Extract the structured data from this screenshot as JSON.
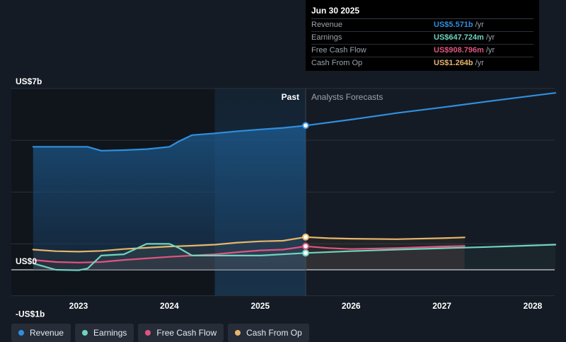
{
  "tooltip": {
    "date": "Jun 30 2025",
    "rows": [
      {
        "label": "Revenue",
        "value": "US$5.571b",
        "unit": "/yr",
        "color": "#2f8fe0"
      },
      {
        "label": "Earnings",
        "value": "US$647.724m",
        "unit": "/yr",
        "color": "#6fd4c0"
      },
      {
        "label": "Free Cash Flow",
        "value": "US$908.796m",
        "unit": "/yr",
        "color": "#e0557f"
      },
      {
        "label": "Cash From Op",
        "value": "US$1.264b",
        "unit": "/yr",
        "color": "#e8b56a"
      }
    ]
  },
  "legend": [
    {
      "label": "Revenue",
      "color": "#2f8fe0"
    },
    {
      "label": "Earnings",
      "color": "#6fd4c0"
    },
    {
      "label": "Free Cash Flow",
      "color": "#e0557f"
    },
    {
      "label": "Cash From Op",
      "color": "#e8b56a"
    }
  ],
  "chart_data": {
    "type": "line",
    "title": "",
    "xlabel": "",
    "ylabel": "",
    "ylim": [
      -1,
      7
    ],
    "xlim": [
      2022.5,
      2028.25
    ],
    "y_tick_labels": [
      {
        "value": 7,
        "label": "US$7b"
      },
      {
        "value": 0,
        "label": "US$0"
      },
      {
        "value": -1,
        "label": "-US$1b"
      }
    ],
    "x_ticks": [
      2023,
      2024,
      2025,
      2026,
      2027,
      2028
    ],
    "past_label": "Past",
    "forecast_label": "Analysts Forecasts",
    "divider_x": 2025.5,
    "forecast_band_start": 2024.5,
    "series": [
      {
        "name": "Revenue",
        "color": "#2f8fe0",
        "points": [
          [
            2022.5,
            4.75
          ],
          [
            2022.75,
            4.75
          ],
          [
            2023.0,
            4.75
          ],
          [
            2023.1,
            4.75
          ],
          [
            2023.25,
            4.6
          ],
          [
            2023.5,
            4.62
          ],
          [
            2023.75,
            4.66
          ],
          [
            2024.0,
            4.75
          ],
          [
            2024.1,
            4.95
          ],
          [
            2024.25,
            5.2
          ],
          [
            2024.5,
            5.27
          ],
          [
            2024.75,
            5.35
          ],
          [
            2025.0,
            5.42
          ],
          [
            2025.25,
            5.48
          ],
          [
            2025.5,
            5.571
          ],
          [
            2026.0,
            5.8
          ],
          [
            2026.5,
            6.05
          ],
          [
            2027.0,
            6.27
          ],
          [
            2027.5,
            6.5
          ],
          [
            2028.0,
            6.72
          ],
          [
            2028.25,
            6.83
          ]
        ]
      },
      {
        "name": "Earnings",
        "color": "#6fd4c0",
        "points": [
          [
            2022.5,
            0.25
          ],
          [
            2022.75,
            0.0
          ],
          [
            2023.0,
            -0.02
          ],
          [
            2023.1,
            0.05
          ],
          [
            2023.25,
            0.55
          ],
          [
            2023.5,
            0.6
          ],
          [
            2023.75,
            1.0
          ],
          [
            2024.0,
            1.0
          ],
          [
            2024.1,
            0.85
          ],
          [
            2024.25,
            0.55
          ],
          [
            2024.5,
            0.55
          ],
          [
            2025.0,
            0.55
          ],
          [
            2025.5,
            0.648
          ],
          [
            2026.0,
            0.72
          ],
          [
            2026.5,
            0.78
          ],
          [
            2027.0,
            0.83
          ],
          [
            2027.5,
            0.88
          ],
          [
            2028.0,
            0.94
          ],
          [
            2028.25,
            0.97
          ]
        ]
      },
      {
        "name": "Free Cash Flow",
        "color": "#e0557f",
        "points": [
          [
            2022.5,
            0.38
          ],
          [
            2022.75,
            0.3
          ],
          [
            2023.0,
            0.28
          ],
          [
            2023.25,
            0.3
          ],
          [
            2023.5,
            0.38
          ],
          [
            2023.75,
            0.44
          ],
          [
            2024.0,
            0.5
          ],
          [
            2024.25,
            0.55
          ],
          [
            2024.5,
            0.6
          ],
          [
            2024.75,
            0.68
          ],
          [
            2025.0,
            0.75
          ],
          [
            2025.25,
            0.78
          ],
          [
            2025.5,
            0.909
          ],
          [
            2025.75,
            0.84
          ],
          [
            2026.0,
            0.8
          ],
          [
            2026.5,
            0.84
          ],
          [
            2027.0,
            0.9
          ],
          [
            2027.25,
            0.92
          ]
        ]
      },
      {
        "name": "Cash From Op",
        "color": "#e8b56a",
        "points": [
          [
            2022.5,
            0.78
          ],
          [
            2022.75,
            0.72
          ],
          [
            2023.0,
            0.7
          ],
          [
            2023.25,
            0.73
          ],
          [
            2023.5,
            0.8
          ],
          [
            2023.75,
            0.85
          ],
          [
            2024.0,
            0.9
          ],
          [
            2024.25,
            0.93
          ],
          [
            2024.5,
            0.97
          ],
          [
            2024.75,
            1.05
          ],
          [
            2025.0,
            1.1
          ],
          [
            2025.25,
            1.12
          ],
          [
            2025.5,
            1.264
          ],
          [
            2025.75,
            1.22
          ],
          [
            2026.0,
            1.2
          ],
          [
            2026.5,
            1.18
          ],
          [
            2027.0,
            1.22
          ],
          [
            2027.25,
            1.25
          ]
        ]
      }
    ]
  }
}
